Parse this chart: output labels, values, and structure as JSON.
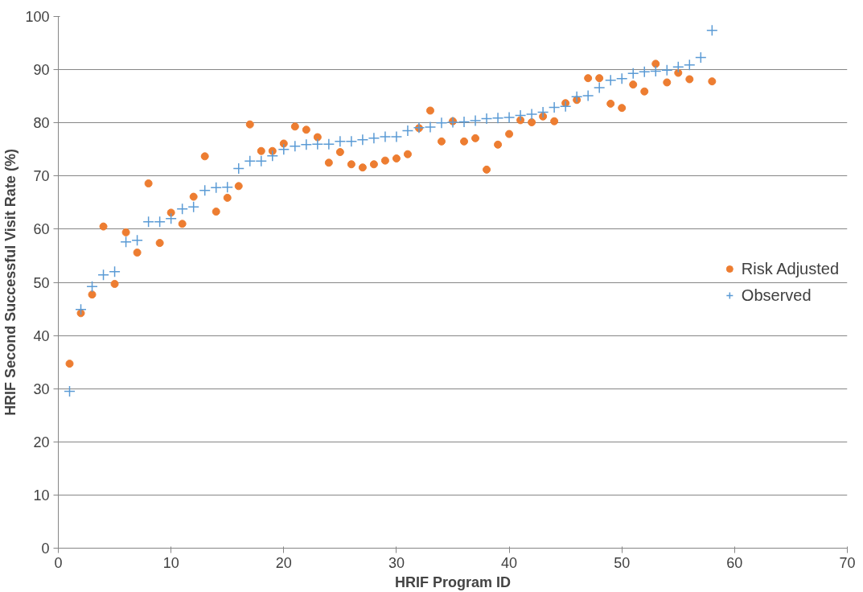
{
  "chart_data": {
    "type": "scatter",
    "xlabel": "HRIF Program ID",
    "ylabel": "HRIF Second Successful Visit Rate (%)",
    "x": [
      1,
      2,
      3,
      4,
      5,
      6,
      7,
      8,
      9,
      10,
      11,
      12,
      13,
      14,
      15,
      16,
      17,
      18,
      19,
      20,
      21,
      22,
      23,
      24,
      25,
      26,
      27,
      28,
      29,
      30,
      31,
      32,
      33,
      34,
      35,
      36,
      37,
      38,
      39,
      40,
      41,
      42,
      43,
      44,
      45,
      46,
      47,
      48,
      49,
      50,
      51,
      52,
      53,
      54,
      55,
      56,
      57,
      58
    ],
    "series": [
      {
        "name": "Risk Adjusted",
        "color": "#ed7d31",
        "marker": "circle",
        "values": [
          34.7,
          44.2,
          47.7,
          60.5,
          49.7,
          59.4,
          55.6,
          68.6,
          57.4,
          63.1,
          61.0,
          66.1,
          73.7,
          63.3,
          65.9,
          68.1,
          79.7,
          74.7,
          74.7,
          76.1,
          79.3,
          78.7,
          77.3,
          72.5,
          74.5,
          72.2,
          71.6,
          72.2,
          72.9,
          73.3,
          74.1,
          79.0,
          82.3,
          76.5,
          80.3,
          76.5,
          77.1,
          71.2,
          75.9,
          77.9,
          80.5,
          80.1,
          81.2,
          80.3,
          83.7,
          84.3,
          88.4,
          88.4,
          83.6,
          82.8,
          87.2,
          85.9,
          91.1,
          87.6,
          89.4,
          88.2,
          null,
          87.8
        ]
      },
      {
        "name": "Observed",
        "color": "#5b9bd5",
        "marker": "cross",
        "values": [
          29.5,
          44.9,
          49.2,
          51.4,
          52.0,
          57.6,
          57.9,
          61.4,
          61.4,
          62.0,
          63.8,
          64.2,
          67.3,
          67.8,
          67.9,
          71.4,
          72.8,
          72.8,
          73.8,
          75.0,
          75.6,
          75.9,
          76.0,
          76.0,
          76.5,
          76.5,
          76.8,
          77.1,
          77.4,
          77.4,
          78.5,
          79.1,
          79.2,
          80.0,
          80.1,
          80.2,
          80.4,
          80.8,
          80.9,
          81.0,
          81.4,
          81.6,
          82.0,
          82.9,
          83.1,
          84.9,
          85.1,
          86.6,
          88.0,
          88.3,
          89.3,
          89.6,
          89.7,
          89.9,
          90.5,
          90.9,
          92.3,
          97.4
        ]
      }
    ],
    "xlim": [
      0,
      70
    ],
    "xticks": [
      0,
      10,
      20,
      30,
      40,
      50,
      60,
      70
    ],
    "ylim": [
      0,
      100
    ],
    "yticks": [
      0,
      10,
      20,
      30,
      40,
      50,
      60,
      70,
      80,
      90,
      100
    ],
    "grid": "y",
    "legend": "right"
  }
}
